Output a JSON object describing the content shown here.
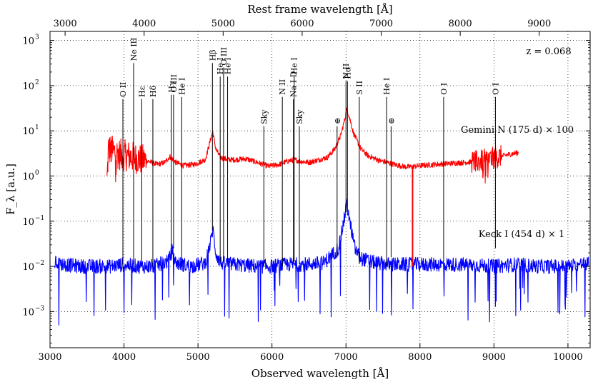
{
  "chart_data": {
    "type": "line",
    "title": "",
    "xlabel": "Observed wavelength [Å]",
    "xlabel_top": "Rest frame wavelength [Å]",
    "ylabel": "F_λ [a.u.]",
    "xlim": [
      3000,
      10300
    ],
    "ylim_log10": [
      -3.8,
      3.2
    ],
    "yscale": "log",
    "grid": true,
    "redshift": 0.068,
    "redshift_label": "z = 0.068",
    "x_ticks": [
      3000,
      4000,
      5000,
      6000,
      7000,
      8000,
      9000,
      10000
    ],
    "x_tick_labels": [
      "3000",
      "4000",
      "5000",
      "6000",
      "7000",
      "8000",
      "9000",
      "10000"
    ],
    "top_ticks_rest": [
      3000,
      4000,
      5000,
      6000,
      7000,
      8000,
      9000
    ],
    "top_tick_labels": [
      "3000",
      "4000",
      "5000",
      "6000",
      "7000",
      "8000",
      "9000"
    ],
    "y_ticks_log10": [
      -3,
      -2,
      -1,
      0,
      1,
      2,
      3
    ],
    "y_tick_labels": [
      "10",
      "10",
      "10",
      "10",
      "10",
      "10",
      "10"
    ],
    "y_tick_exponents": [
      "−3",
      "−2",
      "−1",
      "0",
      "1",
      "2",
      "3"
    ],
    "series": [
      {
        "name": "Gemini N (175 d) × 100",
        "label": "Gemini N (175 d) × 100",
        "color": "#ff0000",
        "x_range": [
          3770,
          9330
        ],
        "points": [
          [
            3770,
            0.8
          ],
          [
            3790,
            4.0
          ],
          [
            3850,
            3.5
          ],
          [
            3950,
            3.0
          ],
          [
            4050,
            2.8
          ],
          [
            4200,
            2.4
          ],
          [
            4300,
            2.2
          ],
          [
            4450,
            1.8
          ],
          [
            4550,
            2.0
          ],
          [
            4620,
            2.7
          ],
          [
            4700,
            2.0
          ],
          [
            4800,
            1.7
          ],
          [
            4950,
            1.8
          ],
          [
            5100,
            2.3
          ],
          [
            5180,
            7.5
          ],
          [
            5200,
            9.5
          ],
          [
            5240,
            4.0
          ],
          [
            5300,
            2.6
          ],
          [
            5400,
            2.3
          ],
          [
            5500,
            2.3
          ],
          [
            5650,
            2.4
          ],
          [
            5800,
            2.0
          ],
          [
            5950,
            1.65
          ],
          [
            6100,
            1.8
          ],
          [
            6200,
            2.1
          ],
          [
            6300,
            2.3
          ],
          [
            6400,
            2.1
          ],
          [
            6500,
            2.0
          ],
          [
            6600,
            2.2
          ],
          [
            6750,
            2.6
          ],
          [
            6850,
            4.0
          ],
          [
            6930,
            8.0
          ],
          [
            6990,
            20.0
          ],
          [
            7010,
            30.0
          ],
          [
            7040,
            22.0
          ],
          [
            7100,
            9.0
          ],
          [
            7200,
            4.0
          ],
          [
            7300,
            2.8
          ],
          [
            7450,
            2.2
          ],
          [
            7550,
            2.0
          ],
          [
            7650,
            1.8
          ],
          [
            7800,
            1.6
          ],
          [
            7900,
            1.6
          ],
          [
            8000,
            1.7
          ],
          [
            8200,
            1.8
          ],
          [
            8400,
            1.9
          ],
          [
            8600,
            2.0
          ],
          [
            8800,
            2.1
          ],
          [
            9000,
            2.5
          ],
          [
            9200,
            3.0
          ],
          [
            9330,
            3.3
          ]
        ]
      },
      {
        "name": "Keck I (454 d) × 1",
        "label": "Keck I (454 d) × 1",
        "color": "#0000ff",
        "x_range": [
          3060,
          10280
        ],
        "points": [
          [
            3060,
            0.012
          ],
          [
            3200,
            0.011
          ],
          [
            3400,
            0.01
          ],
          [
            3600,
            0.01
          ],
          [
            3800,
            0.01
          ],
          [
            4000,
            0.011
          ],
          [
            4200,
            0.01
          ],
          [
            4400,
            0.01
          ],
          [
            4600,
            0.013
          ],
          [
            4650,
            0.022
          ],
          [
            4700,
            0.012
          ],
          [
            4900,
            0.01
          ],
          [
            5100,
            0.012
          ],
          [
            5180,
            0.04
          ],
          [
            5200,
            0.07
          ],
          [
            5240,
            0.02
          ],
          [
            5300,
            0.012
          ],
          [
            5500,
            0.011
          ],
          [
            5800,
            0.01
          ],
          [
            6000,
            0.01
          ],
          [
            6200,
            0.011
          ],
          [
            6400,
            0.011
          ],
          [
            6700,
            0.012
          ],
          [
            6900,
            0.025
          ],
          [
            6980,
            0.12
          ],
          [
            7010,
            0.25
          ],
          [
            7050,
            0.1
          ],
          [
            7120,
            0.025
          ],
          [
            7200,
            0.015
          ],
          [
            7400,
            0.012
          ],
          [
            7600,
            0.011
          ],
          [
            7800,
            0.011
          ],
          [
            8000,
            0.011
          ],
          [
            8300,
            0.011
          ],
          [
            8600,
            0.011
          ],
          [
            9000,
            0.01
          ],
          [
            9300,
            0.011
          ],
          [
            9600,
            0.01
          ],
          [
            10000,
            0.01
          ],
          [
            10280,
            0.012
          ]
        ]
      }
    ],
    "line_ids": [
      {
        "label": "O II",
        "x": 3985,
        "tlog": 1.7,
        "blog": -2.05
      },
      {
        "label": "Ne III",
        "x": 4130,
        "tlog": 2.5,
        "blog": -1.95
      },
      {
        "label": "Hε",
        "x": 4240,
        "tlog": 1.7,
        "blog": -2.0
      },
      {
        "label": "Hδ",
        "x": 4390,
        "tlog": 1.7,
        "blog": -2.0
      },
      {
        "label": "Hγ",
        "x": 4640,
        "tlog": 1.8,
        "blog": -1.6
      },
      {
        "label": "O III",
        "x": 4670,
        "tlog": 1.8,
        "blog": -1.6
      },
      {
        "label": "He I",
        "x": 4780,
        "tlog": 1.75,
        "blog": -2.0
      },
      {
        "label": "Hβ",
        "x": 5195,
        "tlog": 2.5,
        "blog": -1.2
      },
      {
        "label": "He I",
        "x": 5300,
        "tlog": 2.2,
        "blog": -1.9
      },
      {
        "label": "O III",
        "x": 5345,
        "tlog": 2.4,
        "blog": -1.9
      },
      {
        "label": "He I",
        "x": 5400,
        "tlog": 2.2,
        "blog": -1.9
      },
      {
        "label": "Sky",
        "x": 5890,
        "tlog": 1.1,
        "blog": -2.0
      },
      {
        "label": "N II",
        "x": 6140,
        "tlog": 1.75,
        "blog": -2.0
      },
      {
        "label": "Na I D",
        "x": 6290,
        "tlog": 1.7,
        "blog": -1.9
      },
      {
        "label": "He I",
        "x": 6300,
        "tlog": 2.2,
        "blog": -1.9
      },
      {
        "label": "Sky",
        "x": 6370,
        "tlog": 1.1,
        "blog": -1.95
      },
      {
        "label": "⊕",
        "x": 6880,
        "tlog": 1.1,
        "blog": -1.8
      },
      {
        "label": "N II",
        "x": 7000,
        "tlog": 2.1,
        "blog": -0.8
      },
      {
        "label": "Hα",
        "x": 7020,
        "tlog": 2.1,
        "blog": -0.8
      },
      {
        "label": "S II",
        "x": 7180,
        "tlog": 1.75,
        "blog": -1.95
      },
      {
        "label": "He I",
        "x": 7550,
        "tlog": 1.75,
        "blog": -2.0
      },
      {
        "label": "⊕",
        "x": 7610,
        "tlog": 1.1,
        "blog": -1.8
      },
      {
        "label": "O I",
        "x": 8320,
        "tlog": 1.75,
        "blog": -1.9
      },
      {
        "label": "O I",
        "x": 9020,
        "tlog": 1.75,
        "blog": -1.6
      }
    ]
  }
}
